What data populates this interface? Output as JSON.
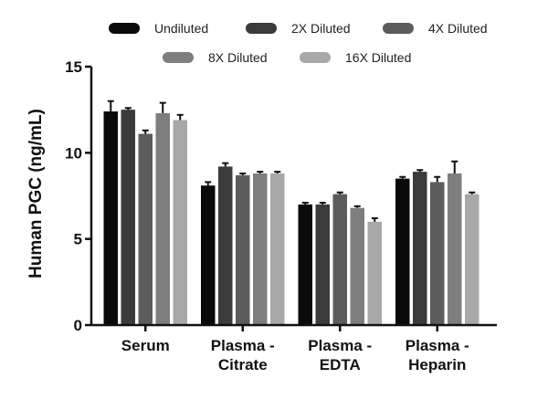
{
  "chart_data": {
    "type": "bar",
    "title": "",
    "xlabel": "",
    "ylabel": "Human PGC (ng/mL)",
    "ylim": [
      0,
      15
    ],
    "yticks": [
      0,
      5,
      10,
      15
    ],
    "grid": false,
    "legend_position": "top",
    "categories": [
      [
        "Serum"
      ],
      [
        "Plasma -",
        "Citrate"
      ],
      [
        "Plasma -",
        "EDTA"
      ],
      [
        "Plasma -",
        "Heparin"
      ]
    ],
    "series": [
      {
        "name": "Undiluted",
        "color": "#0a0a0a",
        "values": [
          12.4,
          8.1,
          7.0,
          8.5
        ],
        "errors": [
          0.6,
          0.2,
          0.1,
          0.1
        ]
      },
      {
        "name": "2X Diluted",
        "color": "#3b3b3b",
        "values": [
          12.5,
          9.2,
          7.0,
          8.9
        ],
        "errors": [
          0.1,
          0.2,
          0.1,
          0.1
        ]
      },
      {
        "name": "4X Diluted",
        "color": "#5c5c5c",
        "values": [
          11.1,
          8.7,
          7.6,
          8.3
        ],
        "errors": [
          0.2,
          0.1,
          0.1,
          0.3
        ]
      },
      {
        "name": "8X Diluted",
        "color": "#7e7e7e",
        "values": [
          12.3,
          8.8,
          6.8,
          8.8
        ],
        "errors": [
          0.6,
          0.1,
          0.1,
          0.7
        ]
      },
      {
        "name": "16X Diluted",
        "color": "#a8a8a8",
        "values": [
          11.9,
          8.8,
          6.0,
          7.6
        ],
        "errors": [
          0.3,
          0.1,
          0.2,
          0.1
        ]
      }
    ]
  }
}
